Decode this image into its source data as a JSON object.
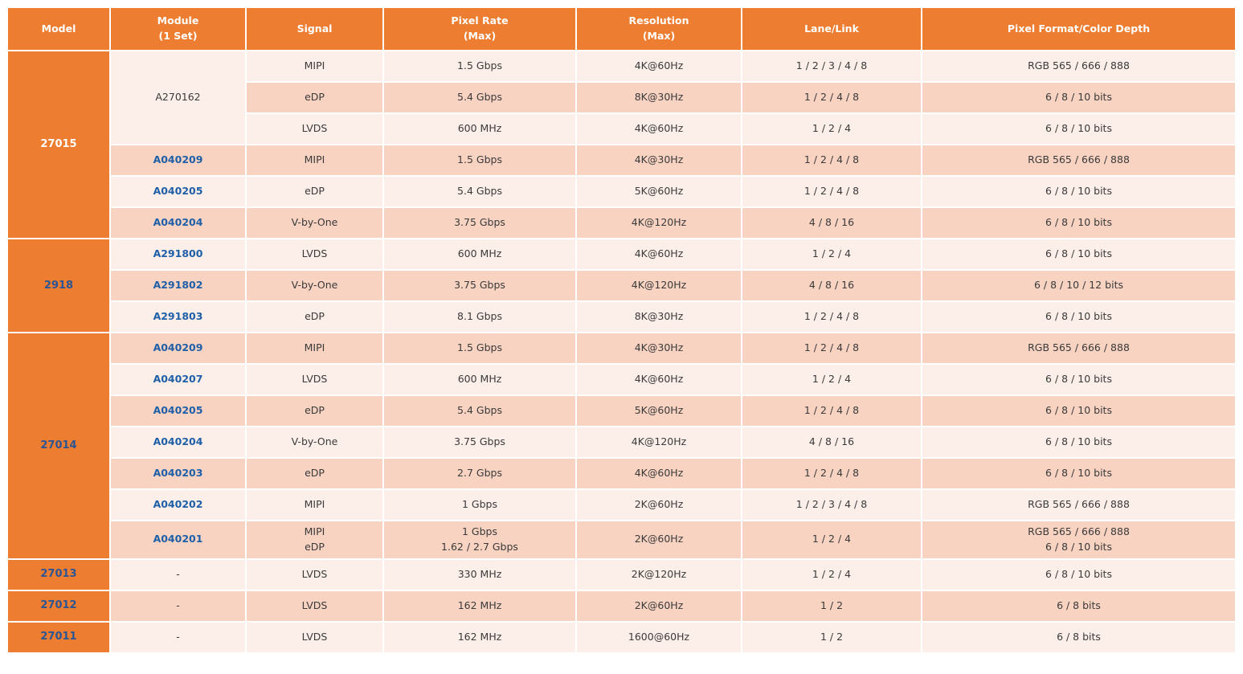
{
  "colors": {
    "header_orange": "#ED7D31",
    "row_light": "#FCEFE9",
    "row_dark": "#F8D3C2",
    "link_blue": "#1F5FA8",
    "model_blue": "#2B5593",
    "body_text": "#3A3A3A"
  },
  "table": {
    "columns": [
      {
        "line1": "Model",
        "line2": ""
      },
      {
        "line1": "Module",
        "line2": "(1 Set)"
      },
      {
        "line1": "Signal",
        "line2": ""
      },
      {
        "line1": "Pixel Rate",
        "line2": "(Max)"
      },
      {
        "line1": "Resolution",
        "line2": "(Max)"
      },
      {
        "line1": "Lane/Link",
        "line2": ""
      },
      {
        "line1": "Pixel Format/Color Depth",
        "line2": ""
      }
    ],
    "groups": [
      {
        "model": "27015",
        "label_color": "white",
        "rows": [
          {
            "module": "A270162",
            "module_rowspan": 3,
            "link": false,
            "signal": "MIPI",
            "rate": "1.5 Gbps",
            "resolution": "4K@60Hz",
            "lane": "1 / 2 / 3 / 4 / 8",
            "format": "RGB 565 / 666 / 888"
          },
          {
            "signal": "eDP",
            "rate": "5.4 Gbps",
            "resolution": "8K@30Hz",
            "lane": "1 / 2 / 4 / 8",
            "format": "6 / 8 / 10 bits"
          },
          {
            "signal": "LVDS",
            "rate": "600 MHz",
            "resolution": "4K@60Hz",
            "lane": "1 / 2 / 4",
            "format": "6 / 8 / 10 bits"
          },
          {
            "module": "A040209",
            "link": true,
            "signal": "MIPI",
            "rate": "1.5 Gbps",
            "resolution": "4K@30Hz",
            "lane": "1 / 2 / 4 / 8",
            "format": "RGB 565 / 666 / 888"
          },
          {
            "module": "A040205",
            "link": true,
            "signal": "eDP",
            "rate": "5.4 Gbps",
            "resolution": "5K@60Hz",
            "lane": "1 / 2 / 4 / 8",
            "format": "6 / 8 / 10 bits"
          },
          {
            "module": "A040204",
            "link": true,
            "signal": "V-by-One",
            "rate": "3.75 Gbps",
            "resolution": "4K@120Hz",
            "lane": "4 / 8 / 16",
            "format": "6 / 8 / 10 bits"
          }
        ]
      },
      {
        "model": "2918",
        "label_color": "blue",
        "rows": [
          {
            "module": "A291800",
            "link": true,
            "signal": "LVDS",
            "rate": "600 MHz",
            "resolution": "4K@60Hz",
            "lane": "1 / 2 / 4",
            "format": "6 / 8 / 10 bits"
          },
          {
            "module": "A291802",
            "link": true,
            "signal": "V-by-One",
            "rate": "3.75 Gbps",
            "resolution": "4K@120Hz",
            "lane": "4 / 8 / 16",
            "format": "6 / 8 / 10 / 12 bits"
          },
          {
            "module": "A291803",
            "link": true,
            "signal": "eDP",
            "rate": "8.1 Gbps",
            "resolution": "8K@30Hz",
            "lane": "1 / 2 / 4 / 8",
            "format": "6 / 8 / 10 bits"
          }
        ]
      },
      {
        "model": "27014",
        "label_color": "blue",
        "rows": [
          {
            "module": "A040209",
            "link": true,
            "signal": "MIPI",
            "rate": "1.5 Gbps",
            "resolution": "4K@30Hz",
            "lane": "1 / 2 / 4 / 8",
            "format": "RGB 565 / 666 / 888"
          },
          {
            "module": "A040207",
            "link": true,
            "signal": "LVDS",
            "rate": "600 MHz",
            "resolution": "4K@60Hz",
            "lane": "1 / 2 / 4",
            "format": "6 / 8 / 10 bits"
          },
          {
            "module": "A040205",
            "link": true,
            "signal": "eDP",
            "rate": "5.4 Gbps",
            "resolution": "5K@60Hz",
            "lane": "1 / 2 / 4 / 8",
            "format": "6 / 8 / 10 bits"
          },
          {
            "module": "A040204",
            "link": true,
            "signal": "V-by-One",
            "rate": "3.75 Gbps",
            "resolution": "4K@120Hz",
            "lane": "4 / 8 / 16",
            "format": "6 / 8 / 10 bits"
          },
          {
            "module": "A040203",
            "link": true,
            "signal": "eDP",
            "rate": "2.7 Gbps",
            "resolution": "4K@60Hz",
            "lane": "1 / 2 / 4 / 8",
            "format": "6 / 8 / 10 bits"
          },
          {
            "module": "A040202",
            "link": true,
            "signal": "MIPI",
            "rate": "1 Gbps",
            "resolution": "2K@60Hz",
            "lane": "1 / 2 / 3 / 4 / 8",
            "format": "RGB 565 / 666 / 888"
          },
          {
            "module": "A040201",
            "link": true,
            "signal": [
              "MIPI",
              "eDP"
            ],
            "rate": [
              "1 Gbps",
              "1.62 / 2.7 Gbps"
            ],
            "resolution": "2K@60Hz",
            "lane": "1 / 2 / 4",
            "format": [
              "RGB 565 / 666 / 888",
              "6 / 8 / 10 bits"
            ]
          }
        ]
      },
      {
        "model": "27013",
        "label_color": "blue",
        "rows": [
          {
            "module": "-",
            "link": false,
            "signal": "LVDS",
            "rate": "330 MHz",
            "resolution": "2K@120Hz",
            "lane": "1 / 2 / 4",
            "format": "6 / 8 / 10 bits"
          }
        ]
      },
      {
        "model": "27012",
        "label_color": "blue",
        "rows": [
          {
            "module": "-",
            "link": false,
            "signal": "LVDS",
            "rate": "162 MHz",
            "resolution": "2K@60Hz",
            "lane": "1 / 2",
            "format": "6 / 8 bits"
          }
        ]
      },
      {
        "model": "27011",
        "label_color": "blue",
        "rows": [
          {
            "module": "-",
            "link": false,
            "signal": "LVDS",
            "rate": "162 MHz",
            "resolution": "1600@60Hz",
            "lane": "1 / 2",
            "format": "6 / 8 bits"
          }
        ]
      }
    ]
  }
}
